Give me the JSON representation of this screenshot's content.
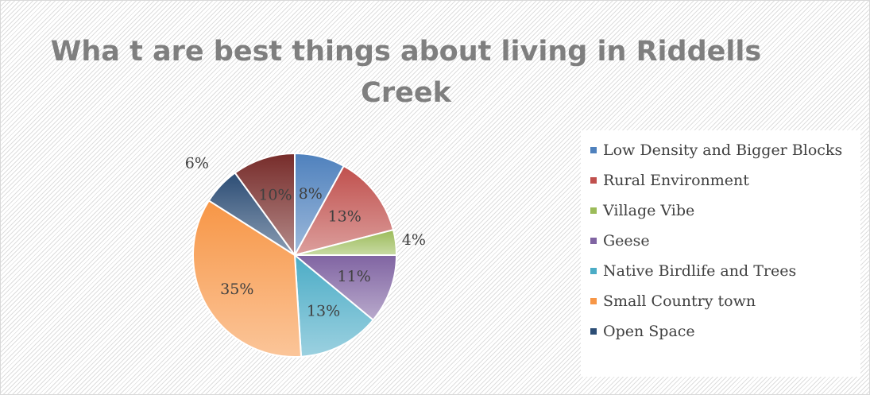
{
  "chart_data": {
    "type": "pie",
    "title": "Wha t are best things about living in Riddells\nCreek",
    "legend_position": "right",
    "slices": [
      {
        "name": "Low Density and Bigger Blocks",
        "value": 8,
        "label": "8%",
        "color": "#4f81bd"
      },
      {
        "name": "Rural Environment",
        "value": 13,
        "label": "13%",
        "color": "#c0504d"
      },
      {
        "name": "Village Vibe",
        "value": 4,
        "label": "4%",
        "color": "#9bbb59"
      },
      {
        "name": "Geese",
        "value": 11,
        "label": "11%",
        "color": "#8064a2"
      },
      {
        "name": "Native Birdlife and Trees",
        "value": 13,
        "label": "13%",
        "color": "#4bacc6"
      },
      {
        "name": "Small Country town",
        "value": 35,
        "label": "35%",
        "color": "#f79646"
      },
      {
        "name": "Open Space",
        "value": 6,
        "label": "6%",
        "color": "#2c4d75"
      },
      {
        "name": "",
        "value": 10,
        "label": "10%",
        "color": "#772c2a"
      }
    ]
  }
}
